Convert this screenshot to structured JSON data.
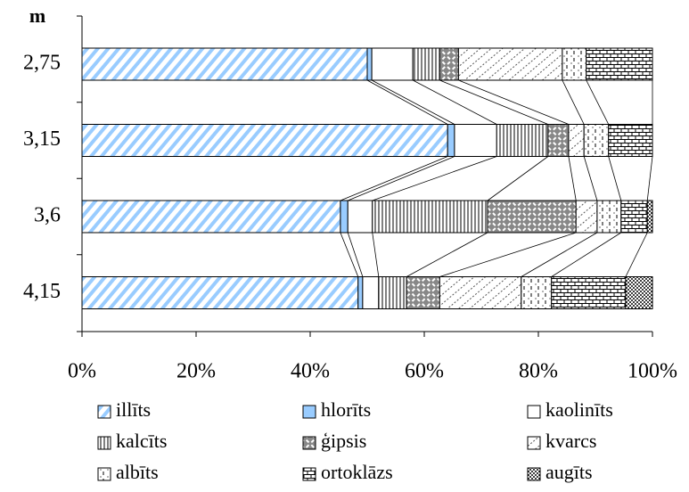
{
  "chart_data": {
    "type": "stacked_barh_percent",
    "y_label": "m",
    "categories": [
      "2,75",
      "3,15",
      "3,6",
      "4,15"
    ],
    "series": [
      {
        "name": "illīts",
        "color": "#99ccff",
        "values": [
          50.0,
          64.1,
          45.3,
          48.4
        ]
      },
      {
        "name": "hlorīts",
        "color": "#99ccff",
        "values": [
          0.8,
          1.2,
          1.3,
          0.8
        ]
      },
      {
        "name": "kaolinīts",
        "color": "#ffffff",
        "values": [
          7.2,
          7.4,
          4.3,
          2.8
        ]
      },
      {
        "name": "kalcīts",
        "color": "#000000",
        "values": [
          4.7,
          9.0,
          20.2,
          4.9
        ]
      },
      {
        "name": "ģipsis",
        "color": "#000000",
        "values": [
          3.3,
          3.6,
          15.5,
          5.8
        ]
      },
      {
        "name": "kvarcs",
        "color": "#000000",
        "values": [
          18.2,
          2.7,
          3.7,
          14.3
        ]
      },
      {
        "name": "albīts",
        "color": "#000000",
        "values": [
          4.2,
          4.3,
          4.2,
          5.3
        ]
      },
      {
        "name": "ortoklāzs",
        "color": "#000000",
        "values": [
          11.6,
          7.7,
          4.6,
          13.0
        ]
      },
      {
        "name": "augīts",
        "color": "#000000",
        "values": [
          0,
          0,
          0.9,
          4.7
        ]
      }
    ],
    "xlim": [
      0,
      100
    ],
    "xticks": [
      {
        "value": 0,
        "label": "0%"
      },
      {
        "value": 20,
        "label": "20%"
      },
      {
        "value": 40,
        "label": "40%"
      },
      {
        "value": 60,
        "label": "60%"
      },
      {
        "value": 80,
        "label": "80%"
      },
      {
        "value": 100,
        "label": "100%"
      }
    ]
  }
}
